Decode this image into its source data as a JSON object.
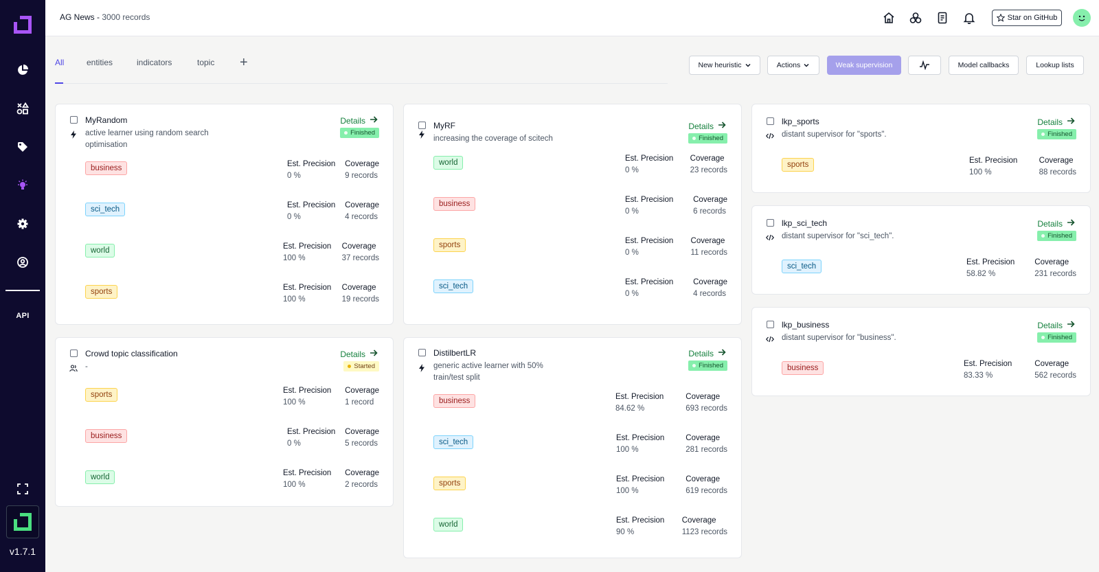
{
  "header": {
    "title": "AG News",
    "separator": " - ",
    "subtitle": "3000 records",
    "star_label": "Star on GitHub"
  },
  "sidebar": {
    "api_label": "API",
    "version": "v1.7.1"
  },
  "tabs": [
    {
      "label": "All",
      "active": true
    },
    {
      "label": "entities"
    },
    {
      "label": "indicators"
    },
    {
      "label": "topic"
    }
  ],
  "toolbar": {
    "new_heuristic": "New heuristic",
    "actions": "Actions",
    "weak_supervision": "Weak supervision",
    "model_callbacks": "Model callbacks",
    "lookup_lists": "Lookup lists"
  },
  "labels": {
    "details": "Details",
    "precision": "Est. Precision",
    "coverage": "Coverage"
  },
  "colors": {
    "sidebar_bg": "#0e0b2e",
    "accent": "#4f46e5",
    "finished": "#86efac",
    "started": "#fef9c3"
  },
  "heuristics": [
    {
      "name": "MyRandom",
      "desc_1": "active learner using random search",
      "desc_2": "optimisation",
      "type_icon": "bolt-icon",
      "status": "Finished",
      "rows": [
        {
          "label": "business",
          "precision": "0 %",
          "coverage": "9 records"
        },
        {
          "label": "sci_tech",
          "precision": "0 %",
          "coverage": "4 records"
        },
        {
          "label": "world",
          "precision": "100 %",
          "coverage": "37 records"
        },
        {
          "label": "sports",
          "precision": "100 %",
          "coverage": "19 records"
        }
      ]
    },
    {
      "name": "Crowd topic classification",
      "desc_1": "-",
      "type_icon": "users-icon",
      "status": "Started",
      "rows": [
        {
          "label": "sports",
          "precision": "100 %",
          "coverage": "1 record"
        },
        {
          "label": "business",
          "precision": "0 %",
          "coverage": "5 records"
        },
        {
          "label": "world",
          "precision": "100 %",
          "coverage": "2 records"
        }
      ]
    },
    {
      "name": "MyRF",
      "desc_1": "increasing the coverage of scitech",
      "type_icon": "bolt-icon",
      "status": "Finished",
      "rows": [
        {
          "label": "world",
          "precision": "0 %",
          "coverage": "23 records"
        },
        {
          "label": "business",
          "precision": "0 %",
          "coverage": "6 records"
        },
        {
          "label": "sports",
          "precision": "0 %",
          "coverage": "11 records"
        },
        {
          "label": "sci_tech",
          "precision": "0 %",
          "coverage": "4 records"
        }
      ]
    },
    {
      "name": "DistilbertLR",
      "desc_1": "generic active learner with 50%",
      "desc_2": "train/test split",
      "type_icon": "bolt-icon",
      "status": "Finished",
      "rows": [
        {
          "label": "business",
          "precision": "84.62 %",
          "coverage": "693 records"
        },
        {
          "label": "sci_tech",
          "precision": "100 %",
          "coverage": "281 records"
        },
        {
          "label": "sports",
          "precision": "100 %",
          "coverage": "619 records"
        },
        {
          "label": "world",
          "precision": "90 %",
          "coverage": "1123 records"
        }
      ]
    },
    {
      "name": "lkp_sports",
      "desc_1": "distant supervisor for \"sports\".",
      "type_icon": "code-icon",
      "status": "Finished",
      "rows": [
        {
          "label": "sports",
          "precision": "100 %",
          "coverage": "88 records"
        }
      ]
    },
    {
      "name": "lkp_sci_tech",
      "desc_1": "distant supervisor for \"sci_tech\".",
      "type_icon": "code-icon",
      "status": "Finished",
      "rows": [
        {
          "label": "sci_tech",
          "precision": "58.82 %",
          "coverage": "231 records"
        }
      ]
    },
    {
      "name": "lkp_business",
      "desc_1": "distant supervisor for \"business\".",
      "type_icon": "code-icon",
      "status": "Finished",
      "rows": [
        {
          "label": "business",
          "precision": "83.33 %",
          "coverage": "562 records"
        }
      ]
    }
  ]
}
